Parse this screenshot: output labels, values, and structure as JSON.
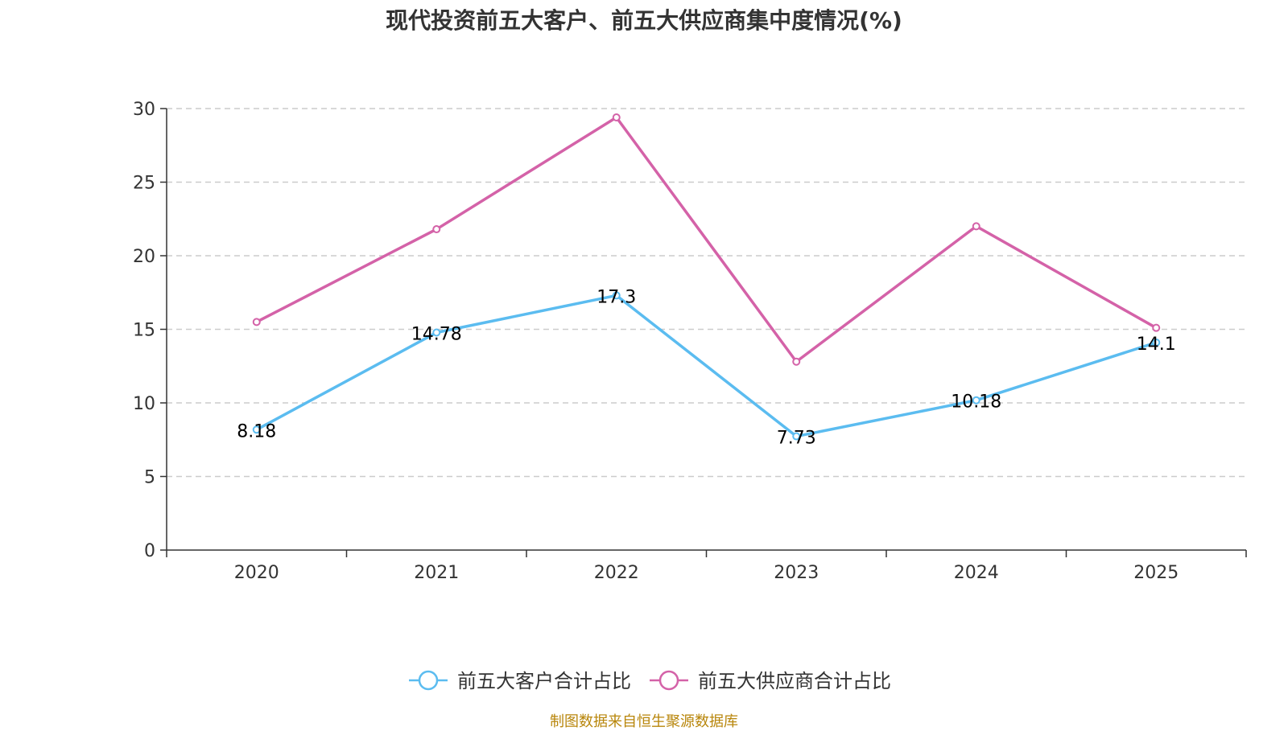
{
  "chart_data": {
    "type": "line",
    "title": "现代投资前五大客户、前五大供应商集中度情况(%)",
    "categories": [
      "2020",
      "2021",
      "2022",
      "2023",
      "2024",
      "2025"
    ],
    "series": [
      {
        "name": "前五大客户合计占比",
        "color": "#5bbcf0",
        "values": [
          8.18,
          14.78,
          17.3,
          7.73,
          10.18,
          14.1
        ],
        "labels": [
          "8.18",
          "14.78",
          "17.3",
          "7.73",
          "10.18",
          "14.1"
        ]
      },
      {
        "name": "前五大供应商合计占比",
        "color": "#d462a8",
        "values": [
          15.5,
          21.8,
          29.4,
          12.8,
          22.0,
          15.1
        ],
        "labels": null
      }
    ],
    "ylim": [
      0,
      30
    ],
    "yticks": [
      0,
      5,
      10,
      15,
      20,
      25,
      30
    ],
    "ytick_labels": [
      "0",
      "5",
      "10",
      "15",
      "20",
      "25",
      "30"
    ],
    "grid": true,
    "legend_position": "bottom-center",
    "xlabel": "",
    "ylabel": ""
  },
  "source_note": "制图数据来自恒生聚源数据库"
}
